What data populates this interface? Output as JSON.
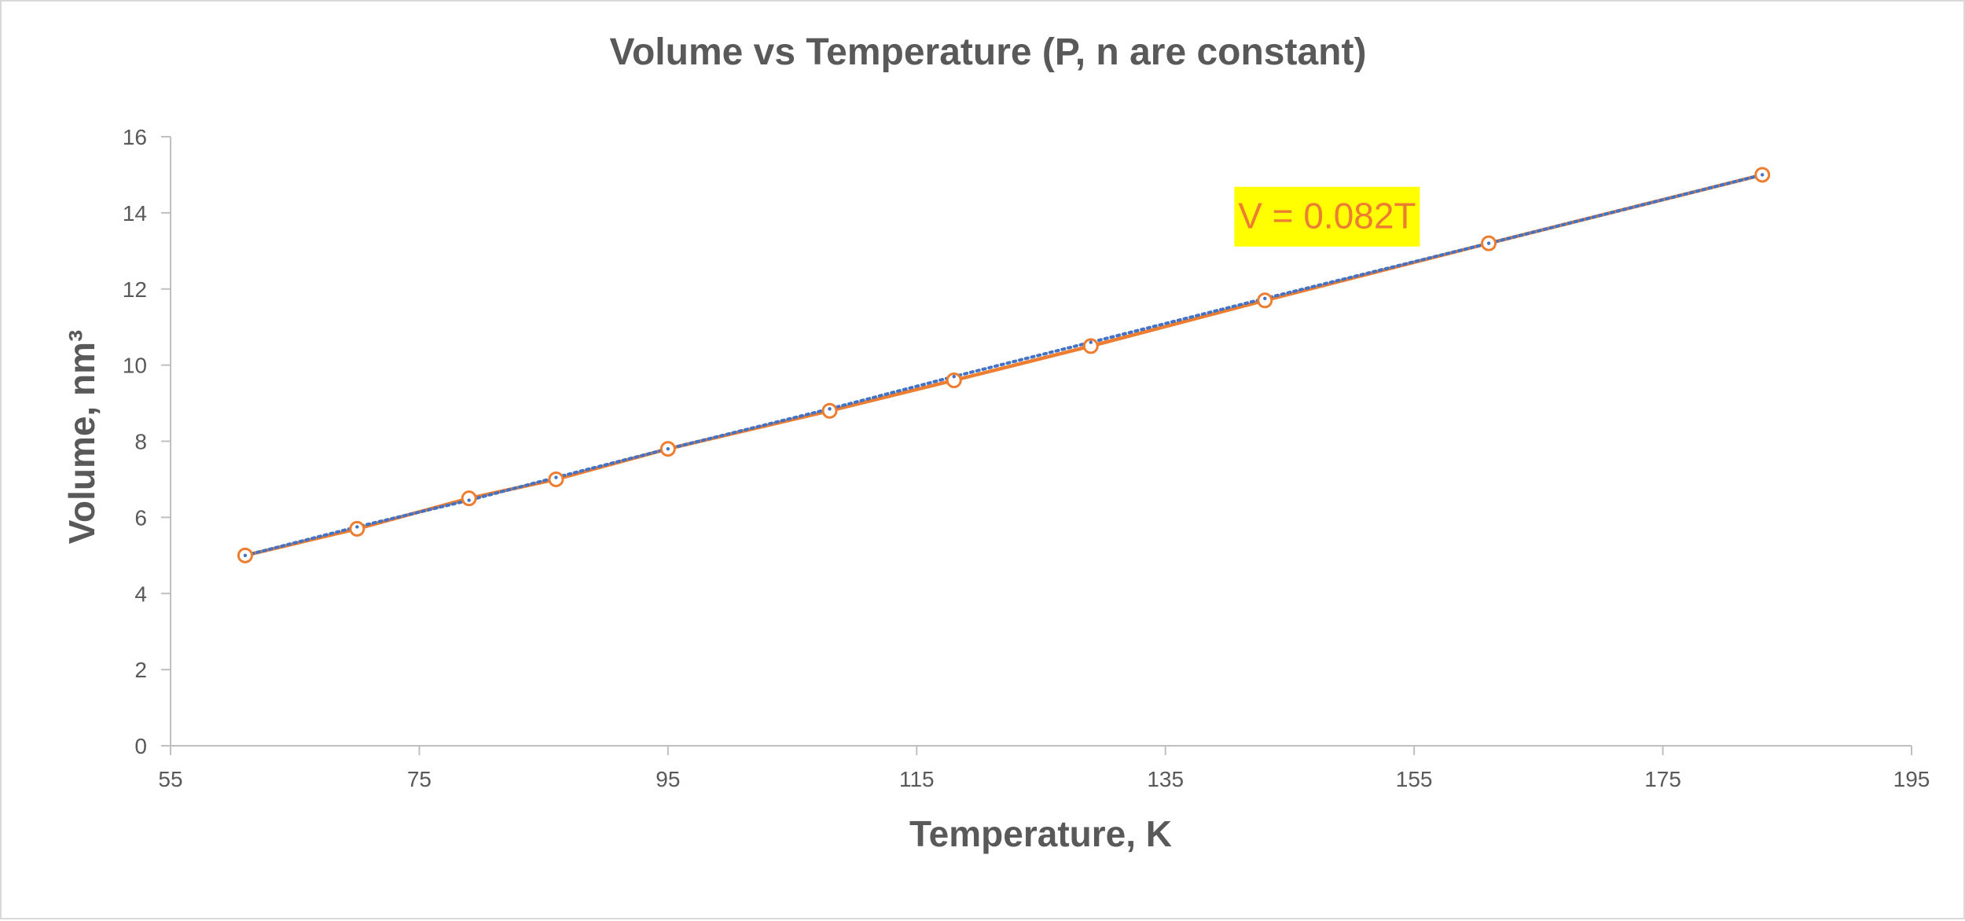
{
  "chart_data": {
    "type": "scatter",
    "title": "Volume vs Temperature (P, n are constant)",
    "xlabel": "Temperature, K",
    "ylabel": "Volume, nm³",
    "xlim": [
      55,
      195
    ],
    "ylim": [
      0,
      16
    ],
    "x_ticks": [
      "55",
      "75",
      "95",
      "115",
      "135",
      "155",
      "175",
      "195"
    ],
    "y_ticks": [
      "0",
      "2",
      "4",
      "6",
      "8",
      "10",
      "12",
      "14",
      "16"
    ],
    "grid": false,
    "legend": "none",
    "series": [
      {
        "style": "line-with-open-circle-markers",
        "color": "#ed7d31",
        "x": [
          61,
          70,
          79,
          86,
          95,
          108,
          118,
          129,
          143,
          161,
          183
        ],
        "y": [
          5.0,
          5.7,
          6.5,
          7.0,
          7.8,
          8.8,
          9.6,
          10.5,
          11.7,
          13.2,
          15.0
        ]
      },
      {
        "style": "dotted-trendline",
        "color": "#4472c4",
        "x": [
          61,
          70,
          79,
          86,
          95,
          108,
          118,
          129,
          143,
          161,
          183
        ],
        "y": [
          5.0,
          5.75,
          6.45,
          7.05,
          7.8,
          8.85,
          9.7,
          10.6,
          11.75,
          13.2,
          15.0
        ]
      }
    ],
    "annotations": [
      {
        "text": "V = 0.082T",
        "x": 148,
        "y": 13.9,
        "background": "#ffff00",
        "color": "#ed7d31"
      }
    ]
  }
}
